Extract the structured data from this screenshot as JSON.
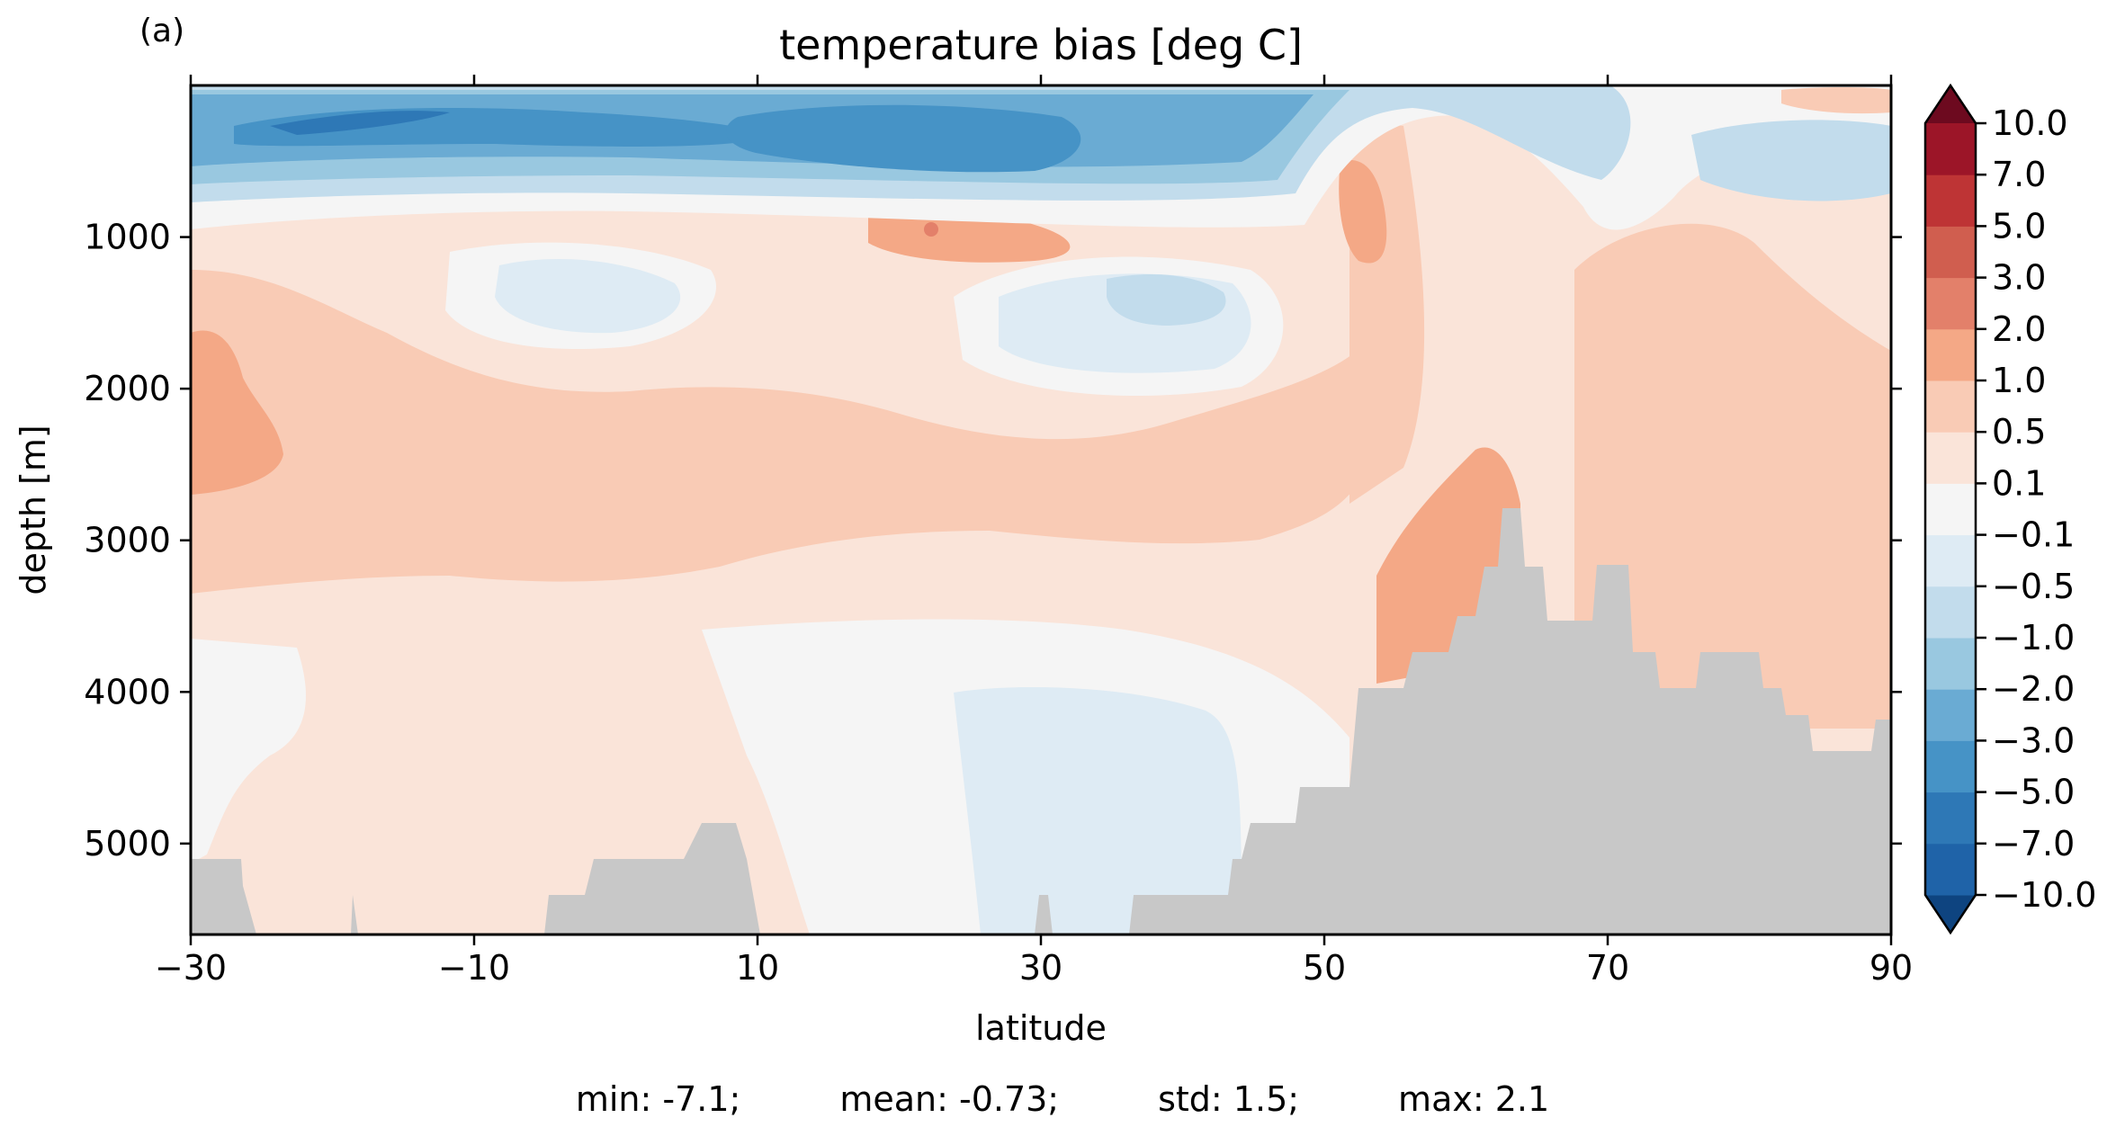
{
  "chart_data": {
    "type": "heatmap",
    "panel_label": "(a)",
    "title": "temperature bias [deg C]",
    "xlabel": "latitude",
    "ylabel": "depth [m]",
    "xlim": [
      -30,
      90
    ],
    "ylim": [
      5600,
      0
    ],
    "x_ticks": [
      "−30",
      "−10",
      "10",
      "30",
      "50",
      "70",
      "90"
    ],
    "x_tick_values": [
      -30,
      -10,
      10,
      30,
      50,
      70,
      90
    ],
    "y_ticks": [
      "1000",
      "2000",
      "3000",
      "4000",
      "5000"
    ],
    "y_tick_values": [
      1000,
      2000,
      3000,
      4000,
      5000
    ],
    "colorbar": {
      "levels": [
        "−10.0",
        "−7.0",
        "−5.0",
        "−3.0",
        "−2.0",
        "−1.0",
        "−0.5",
        "−0.1",
        "0.1",
        "0.5",
        "1.0",
        "2.0",
        "3.0",
        "5.0",
        "7.0",
        "10.0"
      ],
      "level_values": [
        -10,
        -7,
        -5,
        -3,
        -2,
        -1,
        -0.5,
        -0.1,
        0.1,
        0.5,
        1,
        2,
        3,
        5,
        7,
        10
      ],
      "colors": [
        "#0e4480",
        "#1f63a8",
        "#2e78b6",
        "#4693c6",
        "#6aabd3",
        "#99c8e0",
        "#c2dcec",
        "#deebf4",
        "#f5f5f5",
        "#fae4d9",
        "#f9cbb5",
        "#f4a886",
        "#e3806a",
        "#d05e4f",
        "#be3435",
        "#9c1528",
        "#6d0a1f"
      ],
      "extend": "both"
    },
    "land_color": "#c8c8c8",
    "stats": {
      "min": "min: -7.1;",
      "mean": "mean: -0.73;",
      "std": "std: 1.5;",
      "max": "max: 2.1"
    }
  }
}
